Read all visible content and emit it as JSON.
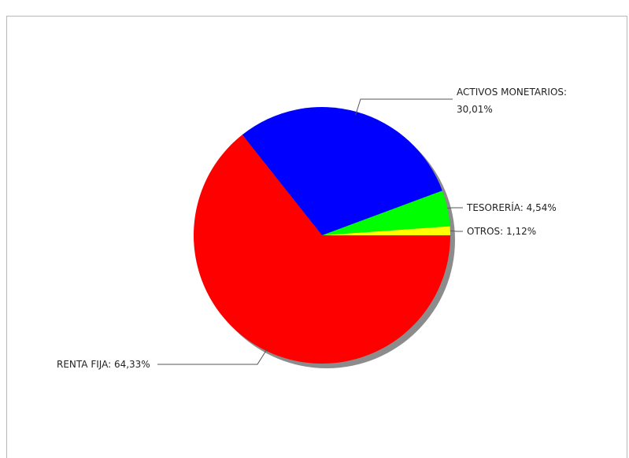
{
  "chart_data": {
    "type": "pie",
    "title": "",
    "slices": [
      {
        "label": "OTROS: 1,12%",
        "value": 1.12,
        "color": "#ffff00"
      },
      {
        "label": "TESORERÍA: 4,54%",
        "value": 4.54,
        "color": "#00ff00"
      },
      {
        "label": "ACTIVOS MONETARIOS: 30,01%",
        "value": 30.01,
        "color": "#0000ff"
      },
      {
        "label": "RENTA FIJA: 64,33%",
        "value": 64.33,
        "color": "#ff0000"
      }
    ],
    "label_lines": [
      [
        "ACTIVOS MONETARIOS:",
        "30,01%"
      ],
      [
        "TESORERÍA: 4,54%"
      ],
      [
        "OTROS: 1,12%"
      ],
      [
        "RENTA FIJA: 64,33%"
      ]
    ],
    "legend": "none",
    "shadow_color": "#8c8c8c"
  }
}
